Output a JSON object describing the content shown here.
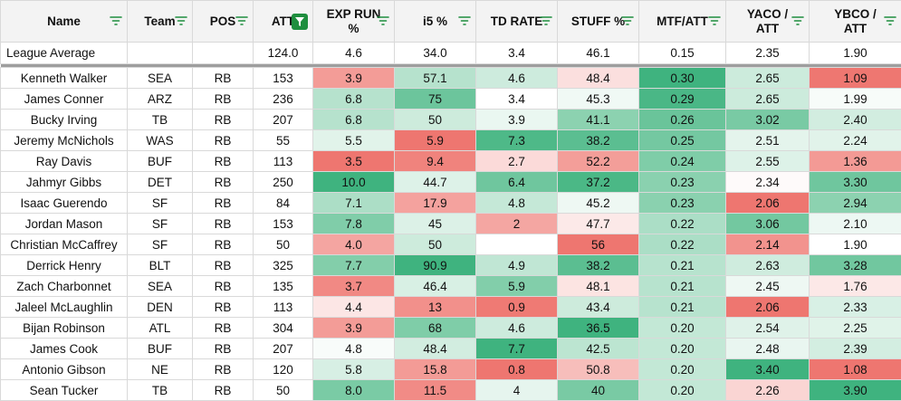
{
  "columns": [
    {
      "key": "name",
      "label": "Name",
      "filter": "inactive"
    },
    {
      "key": "team",
      "label": "Team",
      "filter": "inactive"
    },
    {
      "key": "pos",
      "label": "POS",
      "filter": "inactive"
    },
    {
      "key": "att",
      "label": "ATT",
      "filter": "active"
    },
    {
      "key": "exp",
      "label": "EXP RUN %",
      "filter": "inactive"
    },
    {
      "key": "i5",
      "label": "i5 %",
      "filter": "inactive"
    },
    {
      "key": "td",
      "label": "TD RATE",
      "filter": "inactive"
    },
    {
      "key": "stuff",
      "label": "STUFF %",
      "filter": "inactive"
    },
    {
      "key": "mtf",
      "label": "MTF/ATT",
      "filter": "inactive"
    },
    {
      "key": "yaco",
      "label": "YACO / ATT",
      "filter": "inactive"
    },
    {
      "key": "ybco",
      "label": "YBCO / ATT",
      "filter": "inactive"
    }
  ],
  "league_average": [
    "League Average",
    "",
    "",
    "124.0",
    "4.6",
    "34.0",
    "3.4",
    "46.1",
    "0.15",
    "2.35",
    "1.90"
  ],
  "rows": [
    {
      "cells": [
        "Kenneth Walker",
        "SEA",
        "RB",
        "153",
        "3.9",
        "57.1",
        "4.6",
        "48.4",
        "0.30",
        "2.65",
        "1.09"
      ]
    },
    {
      "cells": [
        "James Conner",
        "ARZ",
        "RB",
        "236",
        "6.8",
        "75",
        "3.4",
        "45.3",
        "0.29",
        "2.65",
        "1.99"
      ]
    },
    {
      "cells": [
        "Bucky Irving",
        "TB",
        "RB",
        "207",
        "6.8",
        "50",
        "3.9",
        "41.1",
        "0.26",
        "3.02",
        "2.40"
      ]
    },
    {
      "cells": [
        "Jeremy McNichols",
        "WAS",
        "RB",
        "55",
        "5.5",
        "5.9",
        "7.3",
        "38.2",
        "0.25",
        "2.51",
        "2.24"
      ]
    },
    {
      "cells": [
        "Ray Davis",
        "BUF",
        "RB",
        "113",
        "3.5",
        "9.4",
        "2.7",
        "52.2",
        "0.24",
        "2.55",
        "1.36"
      ]
    },
    {
      "cells": [
        "Jahmyr Gibbs",
        "DET",
        "RB",
        "250",
        "10.0",
        "44.7",
        "6.4",
        "37.2",
        "0.23",
        "2.34",
        "3.30"
      ]
    },
    {
      "cells": [
        "Isaac Guerendo",
        "SF",
        "RB",
        "84",
        "7.1",
        "17.9",
        "4.8",
        "45.2",
        "0.23",
        "2.06",
        "2.94"
      ]
    },
    {
      "cells": [
        "Jordan Mason",
        "SF",
        "RB",
        "153",
        "7.8",
        "45",
        "2",
        "47.7",
        "0.22",
        "3.06",
        "2.10"
      ]
    },
    {
      "cells": [
        "Christian McCaffrey",
        "SF",
        "RB",
        "50",
        "4.0",
        "50",
        "",
        "56",
        "0.22",
        "2.14",
        "1.90"
      ]
    },
    {
      "cells": [
        "Derrick Henry",
        "BLT",
        "RB",
        "325",
        "7.7",
        "90.9",
        "4.9",
        "38.2",
        "0.21",
        "2.63",
        "3.28"
      ]
    },
    {
      "cells": [
        "Zach Charbonnet",
        "SEA",
        "RB",
        "135",
        "3.7",
        "46.4",
        "5.9",
        "48.1",
        "0.21",
        "2.45",
        "1.76"
      ]
    },
    {
      "cells": [
        "Jaleel McLaughlin",
        "DEN",
        "RB",
        "113",
        "4.4",
        "13",
        "0.9",
        "43.4",
        "0.21",
        "2.06",
        "2.33"
      ]
    },
    {
      "cells": [
        "Bijan Robinson",
        "ATL",
        "RB",
        "304",
        "3.9",
        "68",
        "4.6",
        "36.5",
        "0.20",
        "2.54",
        "2.25"
      ]
    },
    {
      "cells": [
        "James Cook",
        "BUF",
        "RB",
        "207",
        "4.8",
        "48.4",
        "7.7",
        "42.5",
        "0.20",
        "2.48",
        "2.39"
      ]
    },
    {
      "cells": [
        "Antonio Gibson",
        "NE",
        "RB",
        "120",
        "5.8",
        "15.8",
        "0.8",
        "50.8",
        "0.20",
        "3.40",
        "1.08"
      ]
    },
    {
      "cells": [
        "Sean Tucker",
        "TB",
        "RB",
        "50",
        "8.0",
        "11.5",
        "4",
        "40",
        "0.20",
        "2.26",
        "3.90"
      ]
    }
  ],
  "colors": {
    "header_bg": "#f3f3f3",
    "filter_icon": "#1e8e3e",
    "separator": "#9e9e9e",
    "green_dark": "#3fb37f",
    "green_mid": "#8fd3b2",
    "green_light": "#d9f1e5",
    "red_dark": "#ee7670",
    "red_mid": "#f5aaa6",
    "red_light": "#fde3e2"
  }
}
